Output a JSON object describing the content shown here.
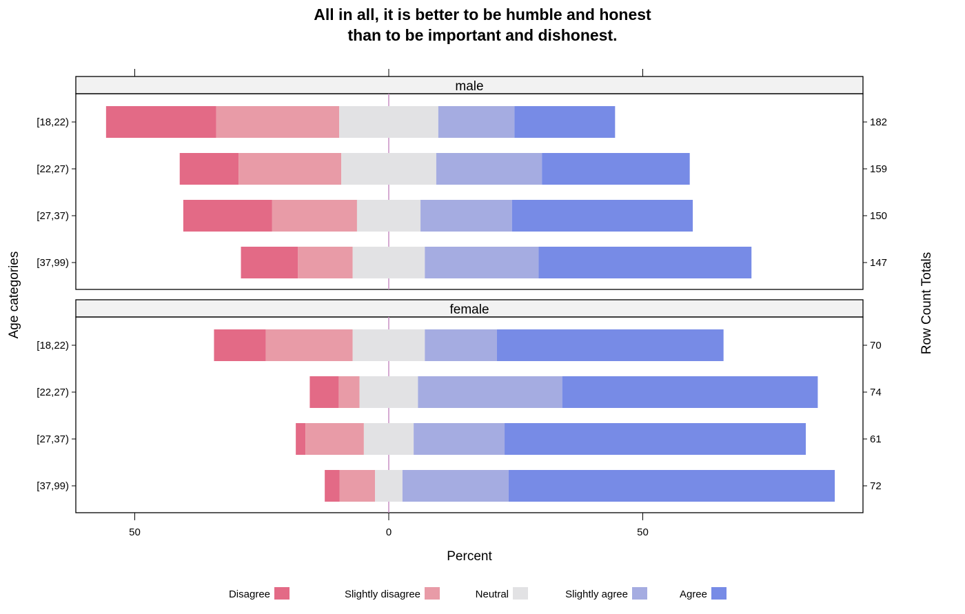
{
  "title": {
    "line1": "All in all, it is better to be humble and honest",
    "line2": "than to be important and dishonest."
  },
  "chart_data": {
    "type": "bar",
    "orientation": "horizontal",
    "stacking": "diverging",
    "title": "All in all, it is better to be humble and honest than to be important and dishonest.",
    "xlabel": "Percent",
    "ylabel": "Age categories",
    "y2label": "Row Count Totals",
    "xlim": [
      -50,
      85
    ],
    "x_ticks": [
      -50,
      0,
      50
    ],
    "x_tick_labels": [
      "50",
      "0",
      "50"
    ],
    "reference_line_at": 0,
    "legend_position": "bottom",
    "levels": [
      "Disagree",
      "Slightly disagree",
      "Neutral",
      "Slightly agree",
      "Agree"
    ],
    "colors": {
      "Disagree": "#e36a86",
      "Slightly disagree": "#e89ba7",
      "Neutral": "#e2e2e4",
      "Slightly agree": "#a5ace1",
      "Agree": "#778be6",
      "panel_border": "#000000",
      "strip_fill": "#f2f2f2",
      "zero_line": "#c78fc4"
    },
    "panels": [
      {
        "name": "male",
        "rows": [
          {
            "label": "[18,22)",
            "total": "182",
            "values": [
              21.7,
              24.2,
              19.5,
              15.0,
              19.8
            ]
          },
          {
            "label": "[22,27)",
            "total": "159",
            "values": [
              11.6,
              20.2,
              18.7,
              20.8,
              29.1
            ]
          },
          {
            "label": "[27,37)",
            "total": "150",
            "values": [
              17.5,
              16.7,
              12.5,
              18.0,
              35.6
            ]
          },
          {
            "label": "[37,99)",
            "total": "147",
            "values": [
              11.2,
              10.8,
              14.2,
              22.4,
              41.9
            ]
          }
        ]
      },
      {
        "name": "female",
        "rows": [
          {
            "label": "[18,22)",
            "total": "70",
            "values": [
              10.2,
              17.1,
              14.2,
              14.2,
              44.6
            ]
          },
          {
            "label": "[22,27)",
            "total": "74",
            "values": [
              5.7,
              4.1,
              11.5,
              28.4,
              50.3
            ]
          },
          {
            "label": "[27,37)",
            "total": "61",
            "values": [
              1.9,
              11.5,
              9.8,
              17.9,
              59.3
            ]
          },
          {
            "label": "[37,99)",
            "total": "72",
            "values": [
              2.9,
              7.0,
              5.4,
              20.9,
              64.2
            ]
          }
        ]
      }
    ]
  }
}
